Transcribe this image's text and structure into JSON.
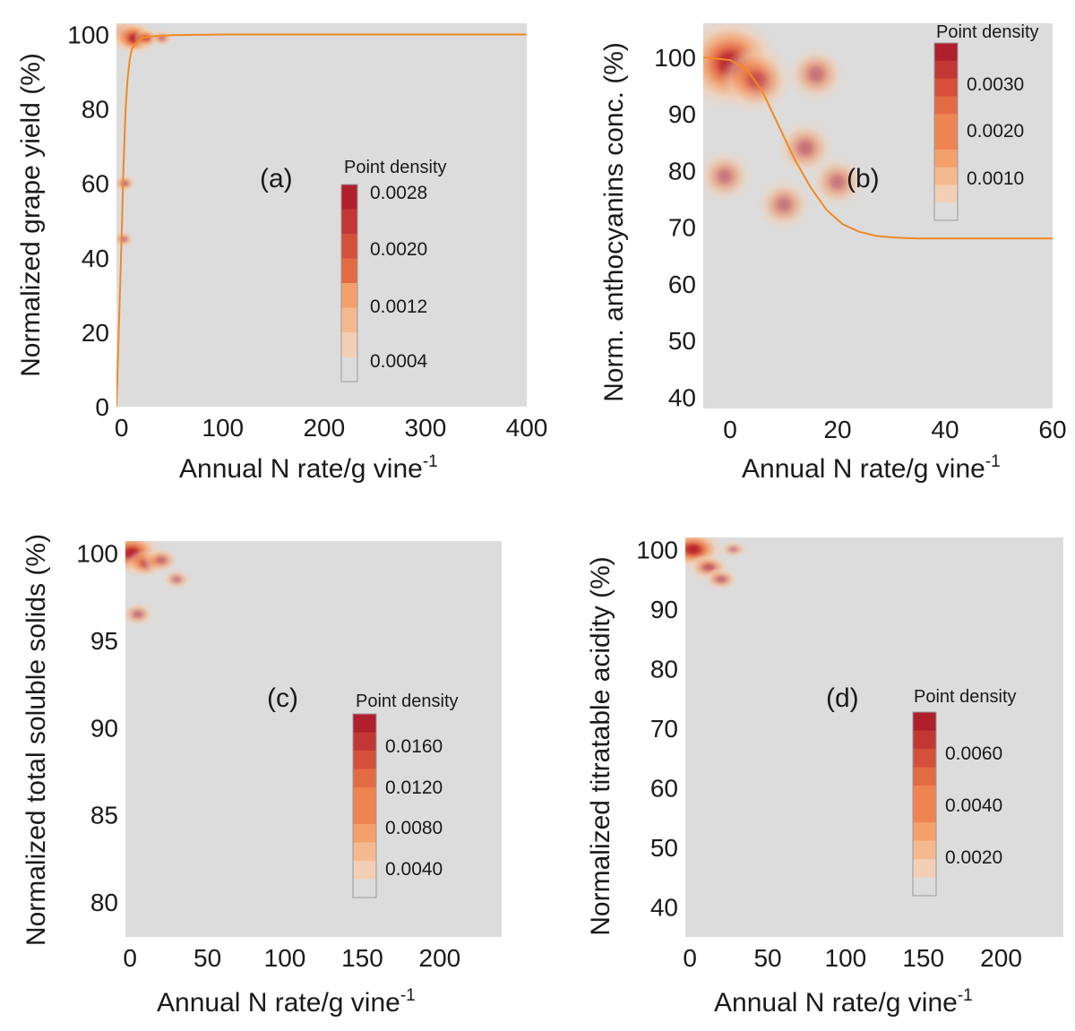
{
  "colors": {
    "background": "#dcdcdc",
    "fit_line": "#f08a24",
    "density_ramp": [
      "#e3d4cc",
      "#f2cfb4",
      "#f5b98f",
      "#f4a06b",
      "#ee8551",
      "#e36b44",
      "#d4503b",
      "#c23734",
      "#b01f2c"
    ]
  },
  "chart_data": [
    {
      "id": "a",
      "type": "heatmap",
      "panel_label": "(a)",
      "xlabel": "Annual N rate/g vine",
      "xlabel_sup": "-1",
      "ylabel": "Normalized grape yield (%)",
      "xlim": [
        -5,
        400
      ],
      "ylim": [
        0,
        103
      ],
      "xticks": [
        0,
        100,
        200,
        300,
        400
      ],
      "yticks": [
        0,
        20,
        40,
        60,
        80,
        100
      ],
      "legend_title": "Point density",
      "legend_values": [
        "0.0028",
        "0.0020",
        "0.0012",
        "0.0004"
      ],
      "fit_curve": {
        "x": [
          -5,
          0,
          2,
          4,
          6,
          8,
          10,
          15,
          20,
          30,
          50,
          100,
          200,
          300,
          400
        ],
        "y": [
          0,
          45,
          65,
          80,
          88,
          93,
          96,
          98,
          99,
          99.5,
          99.8,
          100,
          100,
          100,
          100
        ]
      },
      "density_peaks": [
        [
          5,
          100,
          0.9
        ],
        [
          13,
          99,
          1.0
        ],
        [
          25,
          99,
          0.4
        ],
        [
          40,
          99,
          0.25
        ],
        [
          3,
          60,
          0.3
        ],
        [
          2,
          45,
          0.25
        ]
      ]
    },
    {
      "id": "b",
      "type": "heatmap",
      "panel_label": "(b)",
      "xlabel": "Annual N rate/g vine",
      "xlabel_sup": "-1",
      "ylabel": "Norm. anthocyanins conc. (%)",
      "xlim": [
        -5,
        60
      ],
      "ylim": [
        38,
        106
      ],
      "xticks": [
        0,
        20,
        40,
        60
      ],
      "yticks": [
        40,
        50,
        60,
        70,
        80,
        90,
        100
      ],
      "legend_title": "Point density",
      "legend_values": [
        "0.0030",
        "0.0020",
        "0.0010"
      ],
      "fit_curve": {
        "x": [
          -5,
          0,
          3,
          6,
          9,
          12,
          15,
          18,
          21,
          24,
          27,
          30,
          35,
          40,
          50,
          60
        ],
        "y": [
          100,
          99.5,
          98,
          94,
          88,
          82,
          77,
          73,
          70.5,
          69.2,
          68.5,
          68.2,
          68,
          68,
          68,
          68
        ]
      },
      "density_peaks": [
        [
          0,
          99,
          1.0
        ],
        [
          5,
          96,
          0.55
        ],
        [
          16,
          97,
          0.35
        ],
        [
          14,
          84,
          0.35
        ],
        [
          -1,
          79,
          0.3
        ],
        [
          10,
          74,
          0.3
        ],
        [
          20,
          78,
          0.3
        ]
      ]
    },
    {
      "id": "c",
      "type": "heatmap",
      "panel_label": "(c)",
      "xlabel": "Annual N rate/g vine",
      "xlabel_sup": "-1",
      "ylabel": "Normalized total soluble solids (%)",
      "xlim": [
        -3,
        240
      ],
      "ylim": [
        78,
        100.7
      ],
      "xticks": [
        0,
        50,
        100,
        150,
        200
      ],
      "yticks": [
        80,
        85,
        90,
        95,
        100
      ],
      "legend_title": "Point density",
      "legend_values": [
        "0.0160",
        "0.0120",
        "0.0080",
        "0.0040"
      ],
      "density_peaks": [
        [
          1,
          100,
          1.0
        ],
        [
          10,
          99.4,
          0.45
        ],
        [
          20,
          99.6,
          0.35
        ],
        [
          5,
          96.5,
          0.3
        ],
        [
          30,
          98.5,
          0.2
        ]
      ]
    },
    {
      "id": "d",
      "type": "heatmap",
      "panel_label": "(d)",
      "xlabel": "Annual N rate/g vine",
      "xlabel_sup": "-1",
      "ylabel": "Normalized titratable acidity (%)",
      "xlim": [
        -3,
        240
      ],
      "ylim": [
        35,
        102
      ],
      "xticks": [
        0,
        50,
        100,
        150,
        200
      ],
      "yticks": [
        40,
        50,
        60,
        70,
        80,
        90,
        100
      ],
      "legend_title": "Point density",
      "legend_values": [
        "0.0060",
        "0.0040",
        "0.0020"
      ],
      "density_peaks": [
        [
          2,
          100,
          1.0
        ],
        [
          12,
          97,
          0.5
        ],
        [
          20,
          95,
          0.35
        ],
        [
          28,
          100,
          0.15
        ]
      ]
    }
  ]
}
